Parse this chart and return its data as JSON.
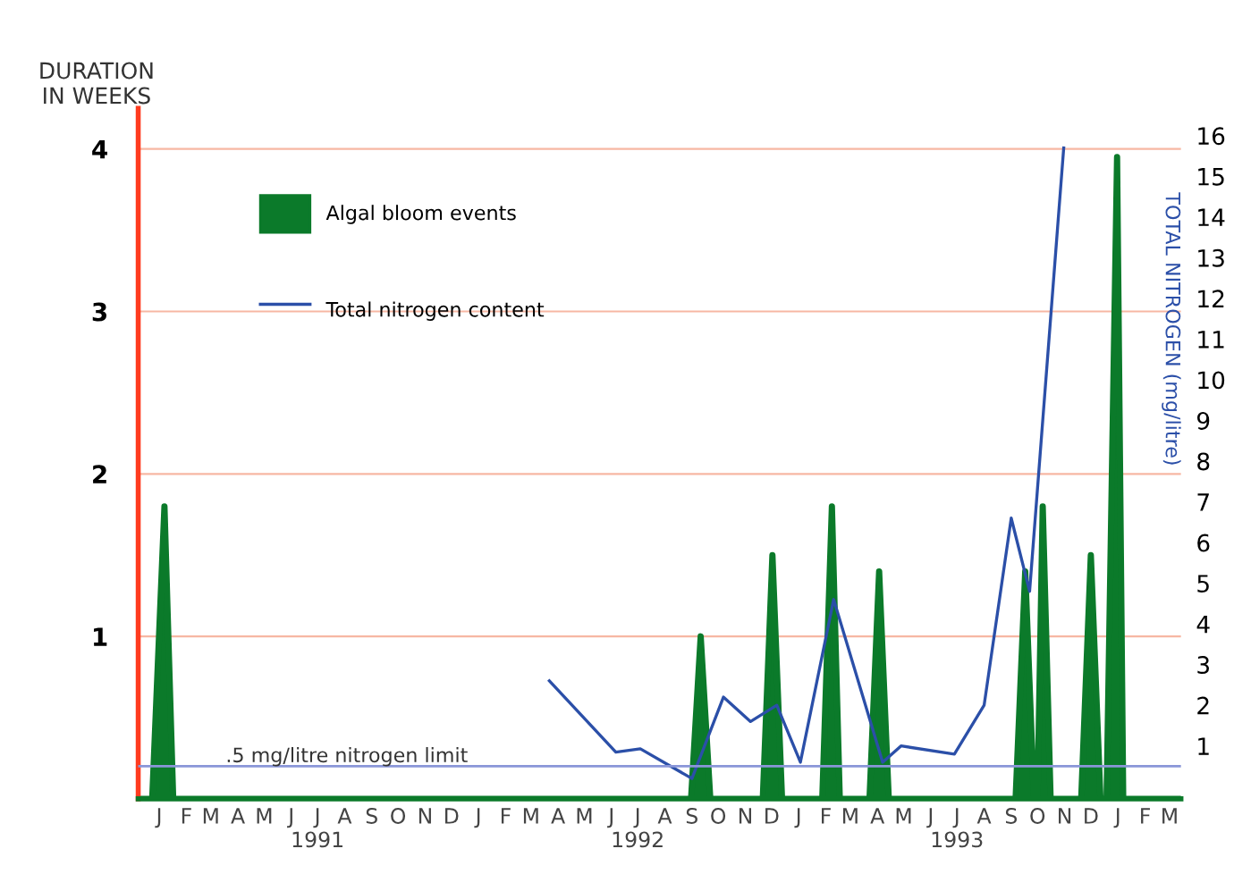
{
  "chart_data": {
    "type": "area",
    "ylabel": "DURATION\nIN WEEKS",
    "y2label": "TOTAL NITROGEN (mg/litre)",
    "xlim": [
      "1990-12-22",
      "1994-03-28"
    ],
    "xticks": [
      {
        "value": "1991-01-15",
        "label": "J"
      },
      {
        "value": "1991-02-15",
        "label": "F"
      },
      {
        "value": "1991-03-15",
        "label": "M"
      },
      {
        "value": "1991-04-15",
        "label": "A"
      },
      {
        "value": "1991-05-15",
        "label": "M"
      },
      {
        "value": "1991-06-15",
        "label": "J"
      },
      {
        "value": "1991-07-15",
        "label": "J\n1991"
      },
      {
        "value": "1991-08-15",
        "label": "A"
      },
      {
        "value": "1991-09-15",
        "label": "S"
      },
      {
        "value": "1991-10-15",
        "label": "O"
      },
      {
        "value": "1991-11-15",
        "label": "N"
      },
      {
        "value": "1991-12-15",
        "label": "D"
      },
      {
        "value": "1992-01-15",
        "label": "J"
      },
      {
        "value": "1992-02-15",
        "label": "F"
      },
      {
        "value": "1992-03-15",
        "label": "M"
      },
      {
        "value": "1992-04-15",
        "label": "A"
      },
      {
        "value": "1992-05-15",
        "label": "M"
      },
      {
        "value": "1992-06-15",
        "label": "J"
      },
      {
        "value": "1992-07-15",
        "label": "J\n1992"
      },
      {
        "value": "1992-08-15",
        "label": "A"
      },
      {
        "value": "1992-09-15",
        "label": "S"
      },
      {
        "value": "1992-10-15",
        "label": "O"
      },
      {
        "value": "1992-11-15",
        "label": "N"
      },
      {
        "value": "1992-12-15",
        "label": "D"
      },
      {
        "value": "1993-01-15",
        "label": "J"
      },
      {
        "value": "1993-02-15",
        "label": "F"
      },
      {
        "value": "1993-03-15",
        "label": "M"
      },
      {
        "value": "1993-04-15",
        "label": "A"
      },
      {
        "value": "1993-05-15",
        "label": "M"
      },
      {
        "value": "1993-06-15",
        "label": "J"
      },
      {
        "value": "1993-07-15",
        "label": "J\n1993"
      },
      {
        "value": "1993-08-15",
        "label": "A"
      },
      {
        "value": "1993-09-15",
        "label": "S"
      },
      {
        "value": "1993-10-15",
        "label": "O"
      },
      {
        "value": "1993-11-15",
        "label": "N"
      },
      {
        "value": "1993-12-15",
        "label": "D"
      },
      {
        "value": "1994-01-15",
        "label": "J"
      },
      {
        "value": "1994-02-15",
        "label": "F"
      },
      {
        "value": "1994-03-15",
        "label": "M"
      }
    ],
    "ylim": [
      0,
      4.25
    ],
    "yticks": [
      1,
      2,
      3,
      4
    ],
    "y2lim": [
      -0.3,
      16.67
    ],
    "y2ticks": [
      1,
      2,
      3,
      4,
      5,
      6,
      7,
      8,
      9,
      10,
      11,
      12,
      13,
      14,
      15,
      16
    ],
    "grid": "y",
    "legend": "top left",
    "series": [
      {
        "name": "Algal bloom events",
        "color": "#0b7a2a",
        "x": [
          "1990-12-22",
          "1991-01-07",
          "1991-01-21",
          "1991-01-31",
          "1992-09-14",
          "1992-09-25",
          "1992-10-06",
          "1992-12-05",
          "1992-12-16",
          "1992-12-27",
          "1993-02-11",
          "1993-02-22",
          "1993-03-03",
          "1993-04-06",
          "1993-04-17",
          "1993-04-28",
          "1993-09-20",
          "1993-10-01",
          "1993-10-11",
          "1993-10-15",
          "1993-10-21",
          "1993-10-30",
          "1993-12-04",
          "1993-12-15",
          "1993-12-26",
          "1994-01-02",
          "1994-01-14",
          "1994-01-21",
          "1994-03-28"
        ],
        "values": [
          0,
          0,
          1.8,
          0,
          0,
          1.0,
          0,
          0,
          1.5,
          0,
          0,
          1.8,
          0,
          0,
          1.4,
          0,
          0,
          1.4,
          0,
          0,
          1.8,
          0,
          0,
          1.5,
          0,
          0,
          3.95,
          0,
          0
        ]
      },
      {
        "name": "Total nitrogen content",
        "type": "line",
        "axis": "y2",
        "color": "#2b4fa8",
        "x": [
          "1992-04-05",
          "1992-06-20",
          "1992-07-18",
          "1992-09-15",
          "1992-10-21",
          "1992-11-21",
          "1992-12-21",
          "1993-01-17",
          "1993-02-24",
          "1993-04-21",
          "1993-05-12",
          "1993-07-12",
          "1993-08-15",
          "1993-09-15",
          "1993-10-06",
          "1993-11-14"
        ],
        "values": [
          2.6,
          0.85,
          0.93,
          0.2,
          2.2,
          1.6,
          2.0,
          0.6,
          4.6,
          0.6,
          1.0,
          0.8,
          2.0,
          6.6,
          4.8,
          15.7
        ]
      }
    ],
    "ref_lines": [
      {
        "axis": "y2",
        "value": 0.5,
        "label": ".5 mg/litre nitrogen limit",
        "color": "#8a96d8"
      }
    ]
  }
}
